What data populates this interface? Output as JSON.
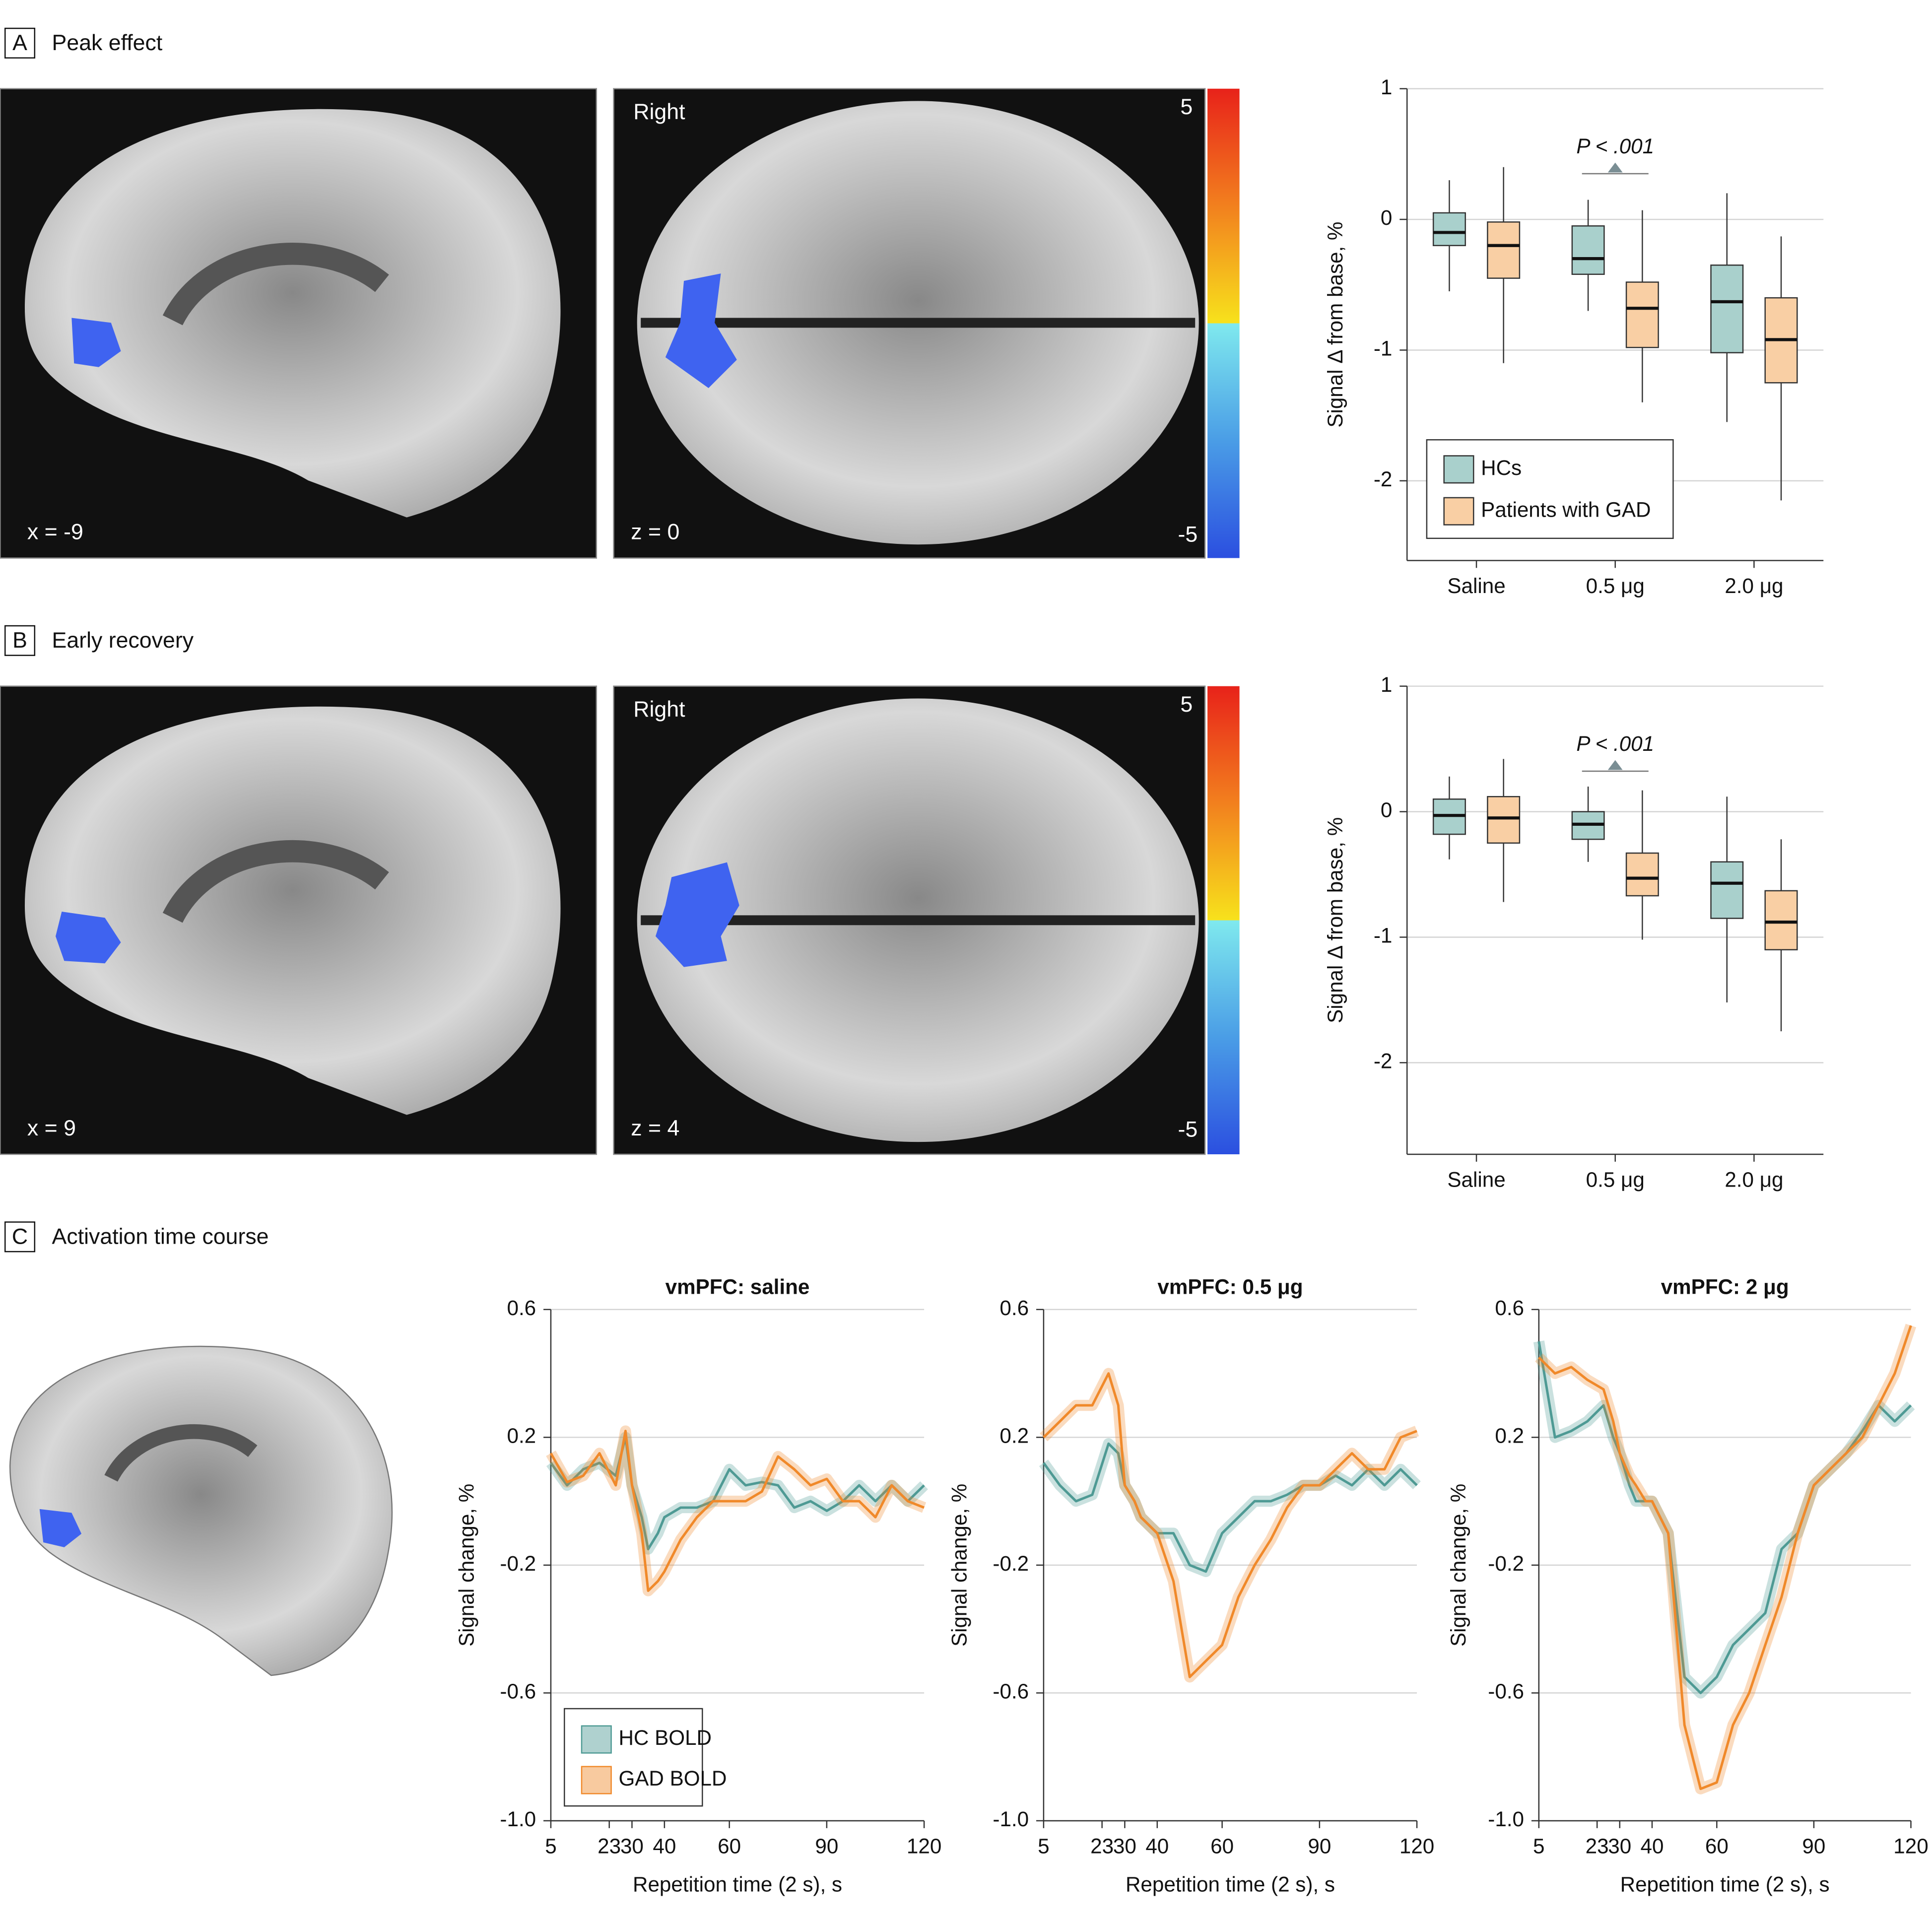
{
  "panels": [
    {
      "letter": "A",
      "title": "Peak effect",
      "orientation": "Right",
      "sagittal": "x = -9",
      "axial": "z = 0",
      "colorbar_max": "5",
      "colorbar_min": "-5"
    },
    {
      "letter": "B",
      "title": "Early recovery",
      "orientation": "Right",
      "sagittal": "x = 9",
      "axial": "z = 4",
      "colorbar_max": "5",
      "colorbar_min": "-5"
    },
    {
      "letter": "C",
      "title": "Activation time course"
    }
  ],
  "chart_data": [
    {
      "type": "box",
      "y_label": "Signal Δ from base, %",
      "categories": [
        "Saline",
        "0.5 μg",
        "2.0 μg"
      ],
      "ylim": [
        -2.61,
        1
      ],
      "yticks": [
        1,
        0,
        -1,
        -2
      ],
      "grid": true,
      "legend": "lower right",
      "annotation": "P < .001",
      "series": [
        {
          "name": "HCs",
          "color": "#a9d0cc",
          "stats": [
            {
              "min": -0.55,
              "q1": -0.2,
              "median": -0.1,
              "q3": 0.05,
              "max": 0.3
            },
            {
              "min": -0.7,
              "q1": -0.42,
              "median": -0.3,
              "q3": -0.05,
              "max": 0.15
            },
            {
              "min": -1.55,
              "q1": -1.02,
              "median": -0.63,
              "q3": -0.35,
              "max": 0.2
            }
          ]
        },
        {
          "name": "Patients with GAD",
          "color": "#f9cfa4",
          "stats": [
            {
              "min": -1.1,
              "q1": -0.45,
              "median": -0.2,
              "q3": -0.02,
              "max": 0.4
            },
            {
              "min": -1.4,
              "q1": -0.98,
              "median": -0.68,
              "q3": -0.48,
              "max": 0.07
            },
            {
              "min": -2.15,
              "q1": -1.25,
              "median": -0.92,
              "q3": -0.6,
              "max": -0.13
            }
          ]
        }
      ]
    },
    {
      "type": "box",
      "y_label": "Signal Δ from base, %",
      "categories": [
        "Saline",
        "0.5 μg",
        "2.0 μg"
      ],
      "ylim": [
        -2.73,
        1
      ],
      "yticks": [
        1,
        0,
        -1,
        -2
      ],
      "grid": true,
      "annotation": "P < .001",
      "series": [
        {
          "color": "#a9d0cc",
          "stats": [
            {
              "min": -0.38,
              "q1": -0.18,
              "median": -0.03,
              "q3": 0.1,
              "max": 0.28
            },
            {
              "min": -0.4,
              "q1": -0.22,
              "median": -0.1,
              "q3": 0.0,
              "max": 0.2
            },
            {
              "min": -1.52,
              "q1": -0.85,
              "median": -0.57,
              "q3": -0.4,
              "max": 0.12
            }
          ]
        },
        {
          "color": "#f9cfa4",
          "stats": [
            {
              "min": -0.72,
              "q1": -0.25,
              "median": -0.05,
              "q3": 0.12,
              "max": 0.42
            },
            {
              "min": -1.02,
              "q1": -0.67,
              "median": -0.53,
              "q3": -0.33,
              "max": 0.17
            },
            {
              "min": -1.75,
              "q1": -1.1,
              "median": -0.88,
              "q3": -0.63,
              "max": -0.22
            }
          ]
        }
      ]
    },
    {
      "type": "line",
      "title": "vmPFC: saline",
      "x_label": "Repetition time (2 s), s",
      "y_label": "Signal change, %",
      "x": [
        5,
        10,
        15,
        20,
        25,
        28,
        30,
        33,
        35,
        38,
        40,
        45,
        50,
        55,
        60,
        65,
        70,
        75,
        80,
        85,
        90,
        95,
        100,
        105,
        110,
        115,
        120
      ],
      "xlim": [
        5,
        120
      ],
      "xticks": [
        5,
        23,
        30,
        40,
        60,
        90,
        120
      ],
      "ylim": [
        -1,
        0.6
      ],
      "yticks": [
        0.6,
        0.2,
        -0.2,
        -0.6,
        {
          "value": -1,
          "label": "-1.0"
        }
      ],
      "grid": true,
      "legend": "lower left",
      "series": [
        {
          "name": "HC BOLD",
          "color": "#4e9a94",
          "values": [
            0.12,
            0.05,
            0.1,
            0.12,
            0.08,
            0.2,
            0.05,
            -0.05,
            -0.15,
            -0.1,
            -0.05,
            -0.02,
            -0.02,
            0.0,
            0.1,
            0.05,
            0.06,
            0.05,
            -0.02,
            0.0,
            -0.03,
            0.0,
            0.05,
            0.0,
            0.05,
            0.0,
            0.05
          ]
        },
        {
          "name": "GAD BOLD",
          "color": "#f0892a",
          "values": [
            0.15,
            0.06,
            0.08,
            0.15,
            0.05,
            0.22,
            0.05,
            -0.1,
            -0.28,
            -0.25,
            -0.22,
            -0.12,
            -0.05,
            0.0,
            0.0,
            0.0,
            0.03,
            0.14,
            0.1,
            0.05,
            0.07,
            0.0,
            0.0,
            -0.05,
            0.05,
            0.0,
            -0.02
          ]
        }
      ]
    },
    {
      "type": "line",
      "title": "vmPFC: 0.5 μg",
      "x_label": "Repetition time (2 s), s",
      "y_label": "Signal change, %",
      "x": [
        5,
        10,
        15,
        20,
        25,
        28,
        30,
        33,
        35,
        38,
        40,
        45,
        50,
        55,
        60,
        65,
        70,
        75,
        80,
        85,
        90,
        95,
        100,
        105,
        110,
        115,
        120
      ],
      "xlim": [
        5,
        120
      ],
      "xticks": [
        5,
        23,
        30,
        40,
        60,
        90,
        120
      ],
      "ylim": [
        -1,
        0.6
      ],
      "yticks": [
        0.6,
        0.2,
        -0.2,
        -0.6,
        {
          "value": -1,
          "label": "-1.0"
        }
      ],
      "grid": true,
      "series": [
        {
          "color": "#4e9a94",
          "values": [
            0.12,
            0.05,
            0.0,
            0.02,
            0.18,
            0.15,
            0.05,
            0.0,
            -0.05,
            -0.08,
            -0.1,
            -0.1,
            -0.2,
            -0.22,
            -0.1,
            -0.05,
            0.0,
            0.0,
            0.02,
            0.05,
            0.05,
            0.08,
            0.05,
            0.1,
            0.05,
            0.1,
            0.05
          ]
        },
        {
          "color": "#f0892a",
          "values": [
            0.2,
            0.25,
            0.3,
            0.3,
            0.4,
            0.3,
            0.05,
            0.0,
            -0.05,
            -0.08,
            -0.1,
            -0.25,
            -0.55,
            -0.5,
            -0.45,
            -0.3,
            -0.2,
            -0.12,
            -0.02,
            0.05,
            0.05,
            0.1,
            0.15,
            0.1,
            0.1,
            0.2,
            0.22
          ]
        }
      ]
    },
    {
      "type": "line",
      "title": "vmPFC: 2 μg",
      "x_label": "Repetition time (2 s), s",
      "y_label": "Signal change, %",
      "x": [
        5,
        10,
        15,
        20,
        25,
        28,
        30,
        33,
        35,
        38,
        40,
        45,
        50,
        55,
        60,
        65,
        70,
        75,
        80,
        85,
        90,
        95,
        100,
        105,
        110,
        115,
        120
      ],
      "xlim": [
        5,
        120
      ],
      "xticks": [
        5,
        23,
        30,
        40,
        60,
        90,
        120
      ],
      "ylim": [
        -1,
        0.6
      ],
      "yticks": [
        0.6,
        0.2,
        -0.2,
        -0.6,
        {
          "value": -1,
          "label": "-1.0"
        }
      ],
      "grid": true,
      "series": [
        {
          "color": "#4e9a94",
          "values": [
            0.5,
            0.2,
            0.22,
            0.25,
            0.3,
            0.2,
            0.15,
            0.05,
            0.0,
            0.0,
            0.0,
            -0.1,
            -0.55,
            -0.6,
            -0.55,
            -0.45,
            -0.4,
            -0.35,
            -0.15,
            -0.1,
            0.05,
            0.1,
            0.15,
            0.22,
            0.3,
            0.25,
            0.3
          ]
        },
        {
          "color": "#f0892a",
          "values": [
            0.45,
            0.4,
            0.42,
            0.38,
            0.35,
            0.25,
            0.15,
            0.08,
            0.05,
            0.0,
            0.0,
            -0.1,
            -0.7,
            -0.9,
            -0.88,
            -0.7,
            -0.6,
            -0.45,
            -0.3,
            -0.1,
            0.05,
            0.1,
            0.15,
            0.2,
            0.3,
            0.4,
            0.55
          ]
        }
      ]
    }
  ]
}
